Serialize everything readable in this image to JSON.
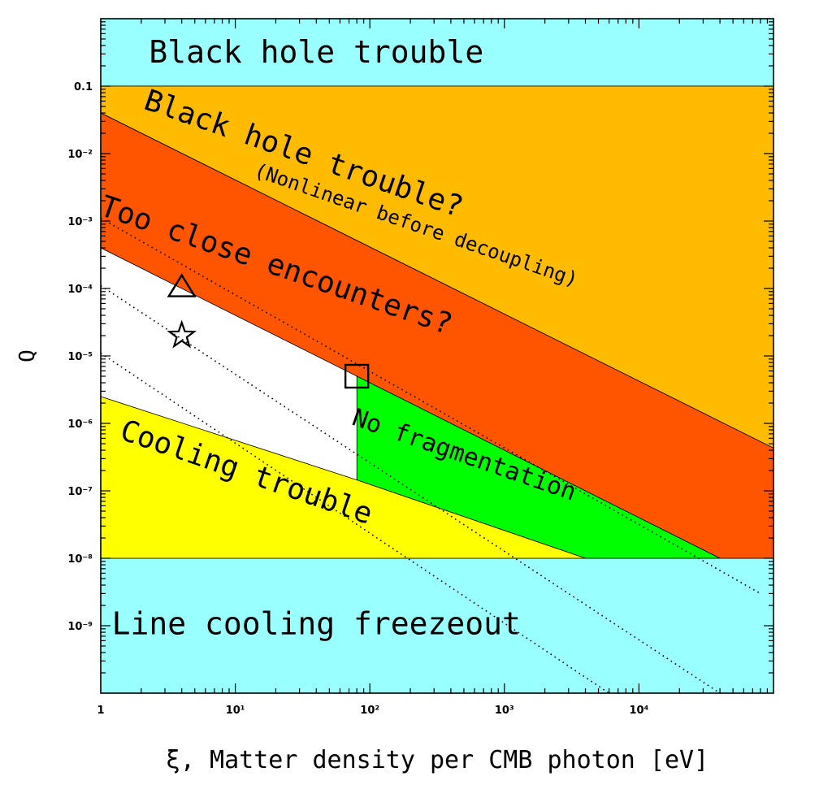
{
  "chart_data": {
    "type": "area",
    "title": "",
    "xlabel": "ξ, Matter density per CMB photon [eV]",
    "ylabel": "Q",
    "x_scale": "log",
    "y_scale": "log",
    "xlim": [
      1,
      100000
    ],
    "ylim": [
      1e-10,
      1
    ],
    "x_ticks": [
      {
        "value": 1,
        "label": "1"
      },
      {
        "value": 10,
        "label": "10¹"
      },
      {
        "value": 100,
        "label": "10²"
      },
      {
        "value": 1000,
        "label": "10³"
      },
      {
        "value": 10000,
        "label": "10⁴"
      }
    ],
    "y_ticks": [
      {
        "value": 0.1,
        "label": "0.1"
      },
      {
        "value": 0.01,
        "label": "10⁻²"
      },
      {
        "value": 0.001,
        "label": "10⁻³"
      },
      {
        "value": 0.0001,
        "label": "10⁻⁴"
      },
      {
        "value": 1e-05,
        "label": "10⁻⁵"
      },
      {
        "value": 1e-06,
        "label": "10⁻⁶"
      },
      {
        "value": 1e-07,
        "label": "10⁻⁷"
      },
      {
        "value": 1e-08,
        "label": "10⁻⁸"
      },
      {
        "value": 1e-09,
        "label": "10⁻⁹"
      }
    ],
    "regions": [
      {
        "name": "Black hole trouble",
        "color": "#99FFFF",
        "points": [
          [
            1,
            0.1
          ],
          [
            100000,
            0.1
          ],
          [
            100000,
            1
          ],
          [
            1,
            1
          ]
        ]
      },
      {
        "name": "Line cooling freezeout",
        "color": "#99FFFF",
        "points": [
          [
            1,
            1e-10
          ],
          [
            100000,
            1e-10
          ],
          [
            100000,
            1e-08
          ],
          [
            1,
            1e-08
          ]
        ]
      },
      {
        "name": "Black hole trouble? (Nonlinear before decoupling)",
        "color": "#FFBB00",
        "points": [
          [
            1,
            0.04
          ],
          [
            1,
            0.1
          ],
          [
            100000,
            0.1
          ],
          [
            100000,
            4.3e-07
          ]
        ]
      },
      {
        "name": "Too close encounters?",
        "color": "#FF5500",
        "points": [
          [
            1,
            0.0004
          ],
          [
            1,
            0.04
          ],
          [
            100000,
            4.3e-07
          ],
          [
            100000,
            1e-08
          ],
          [
            40000,
            1e-08
          ]
        ]
      },
      {
        "name": "No fragmentation",
        "color": "#00FF00",
        "points": [
          [
            80,
            1.45e-07
          ],
          [
            80,
            5e-06
          ],
          [
            40000,
            1e-08
          ],
          [
            4000,
            1e-08
          ]
        ]
      },
      {
        "name": "Cooling trouble",
        "color": "#FFFF00",
        "points": [
          [
            1,
            2.5e-06
          ],
          [
            80,
            1.45e-07
          ],
          [
            4000,
            1e-08
          ],
          [
            1,
            1e-08
          ]
        ]
      }
    ],
    "dotted_lines": [
      {
        "values": [
          [
            1,
            0.0011
          ],
          [
            80000,
            3e-09
          ]
        ]
      },
      {
        "values": [
          [
            1,
            0.00011
          ],
          [
            40000,
            1e-10
          ]
        ]
      },
      {
        "values": [
          [
            1,
            1.1e-05
          ],
          [
            6000,
            1e-10
          ]
        ]
      }
    ],
    "markers": [
      {
        "shape": "triangle",
        "x": 4,
        "y": 0.00011
      },
      {
        "shape": "star",
        "x": 4,
        "y": 2e-05
      },
      {
        "shape": "square",
        "x": 80,
        "y": 5e-06
      }
    ],
    "annotations": [
      {
        "text": "Black hole trouble",
        "x": 40,
        "y": 0.3,
        "angle": 0,
        "size": 38
      },
      {
        "text": "Black hole trouble?",
        "x": 32,
        "y": 0.0095,
        "angle": 19,
        "size": 36
      },
      {
        "text": "(Nonlinear before decoupling)",
        "x": 220,
        "y": 0.00085,
        "angle": 19,
        "size": 24
      },
      {
        "text": "Too close encounters?",
        "x": 20,
        "y": 0.00021,
        "angle": 19,
        "size": 36
      },
      {
        "text": "No fragmentation",
        "x": 500,
        "y": 3.3e-07,
        "angle": 19,
        "size": 30
      },
      {
        "text": "Cooling trouble",
        "x": 12,
        "y": 1.8e-07,
        "angle": 19,
        "size": 36
      },
      {
        "text": "Line cooling freezeout",
        "x": 40,
        "y": 1e-09,
        "angle": 0,
        "size": 38
      }
    ]
  }
}
